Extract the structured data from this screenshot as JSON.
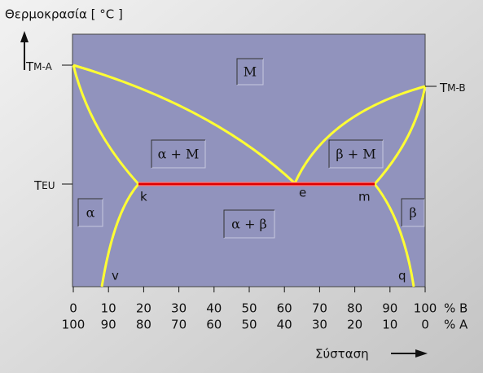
{
  "axis_title": "Θερμοκρασία [ °C ]",
  "composition_label": "Σύσταση",
  "unit_b": "% B",
  "unit_a": "% A",
  "ticks_b": [
    0,
    10,
    20,
    30,
    40,
    50,
    60,
    70,
    80,
    90,
    100
  ],
  "ticks_a": [
    100,
    90,
    80,
    70,
    60,
    50,
    40,
    30,
    20,
    10,
    0
  ],
  "temperatures": [
    {
      "base": "T",
      "sub": "M-A"
    },
    {
      "base": "T",
      "sub": "M-B"
    },
    {
      "base": "T",
      "sub": "EU"
    }
  ],
  "regions": [
    "M",
    "α + M",
    "β + M",
    "α + β",
    "α",
    "β"
  ],
  "points": [
    "k",
    "e",
    "m",
    "v",
    "q"
  ]
}
